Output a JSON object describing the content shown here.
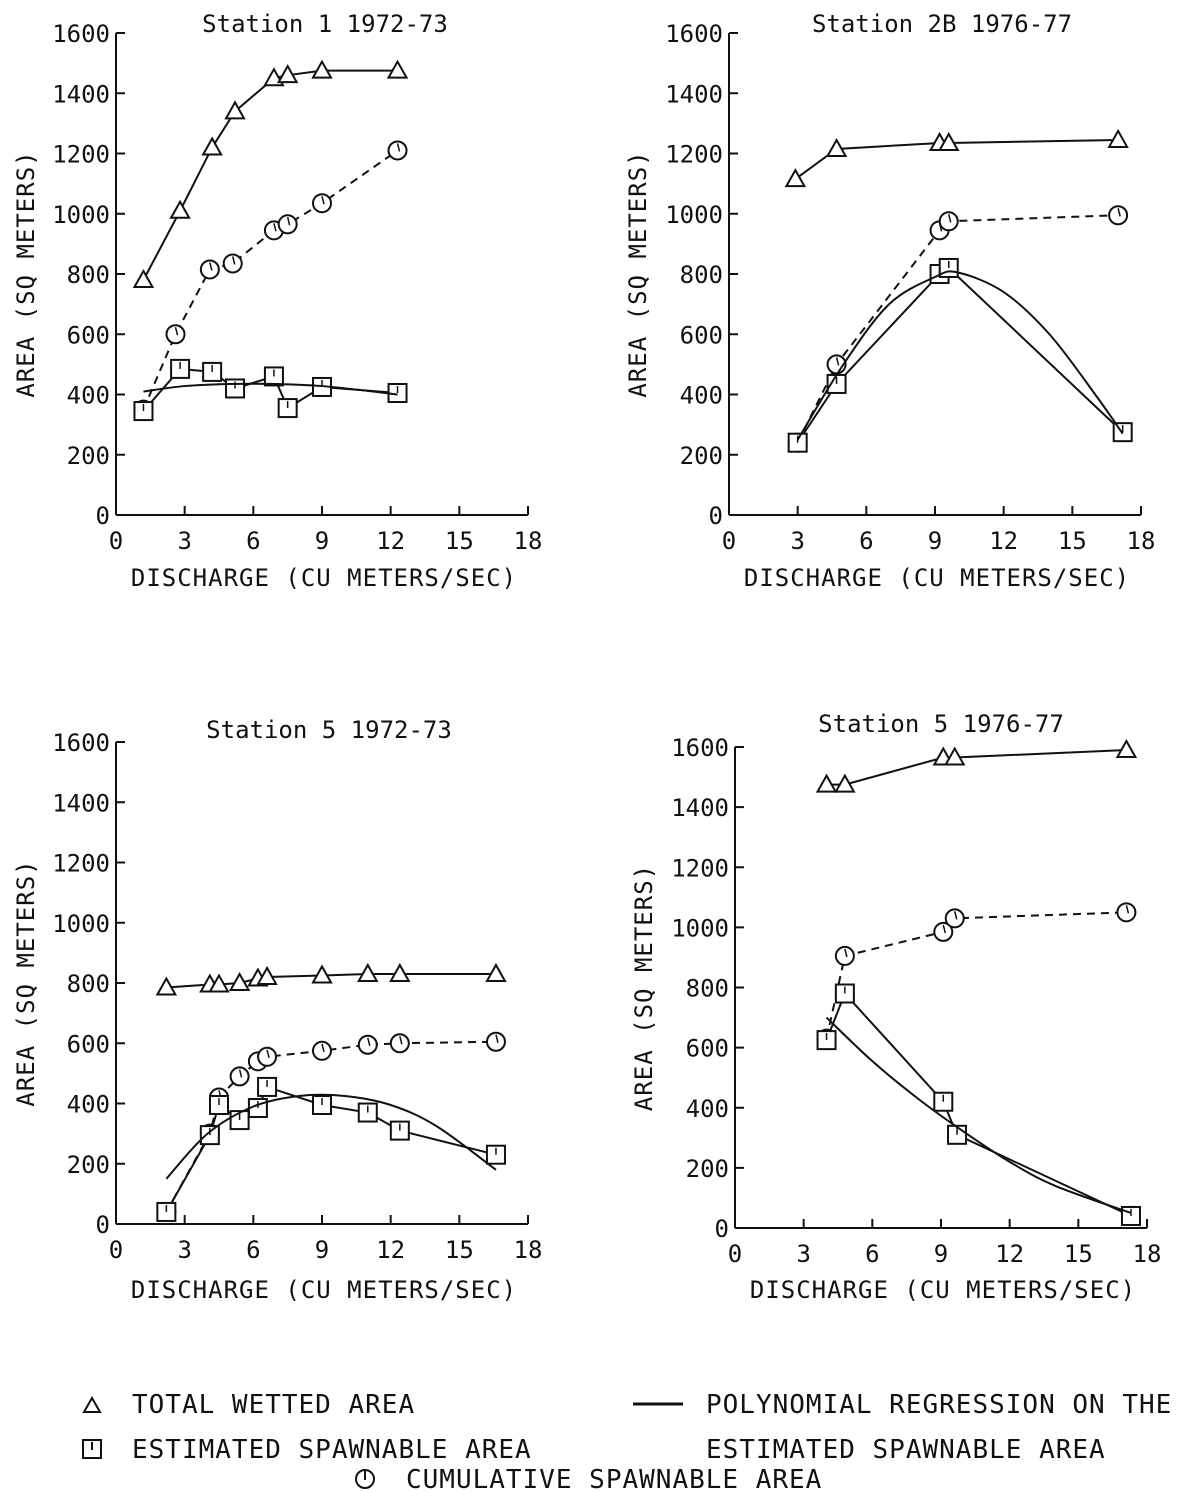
{
  "chart_data": [
    {
      "type": "line",
      "title": "Station 1  1972-73",
      "xlabel": "DISCHARGE (CU METERS/SEC)",
      "ylabel": "AREA (SQ METERS)",
      "xlim": [
        0,
        18
      ],
      "ylim": [
        0,
        1600
      ],
      "xticks": [
        "0",
        "3",
        "6",
        "9",
        "12",
        "15",
        "18"
      ],
      "yticks": [
        "0",
        "200",
        "400",
        "600",
        "800",
        "1000",
        "1200",
        "1400",
        "1600"
      ],
      "series": [
        {
          "key": "total",
          "x": [
            1.2,
            2.8,
            4.2,
            5.2,
            6.9,
            7.5,
            9.0,
            12.3
          ],
          "y": [
            780,
            1010,
            1220,
            1340,
            1450,
            1460,
            1475,
            1475
          ]
        },
        {
          "key": "cumulative",
          "x": [
            1.2,
            2.6,
            4.1,
            5.1,
            6.9,
            7.5,
            9.0,
            12.3
          ],
          "y": [
            350,
            600,
            815,
            835,
            945,
            965,
            1035,
            1210
          ]
        },
        {
          "key": "spawnable",
          "x": [
            1.2,
            2.8,
            4.2,
            5.2,
            6.9,
            7.5,
            9.0,
            12.3
          ],
          "y": [
            345,
            485,
            475,
            420,
            460,
            355,
            425,
            405
          ]
        },
        {
          "key": "regression",
          "x": [
            1.2,
            3,
            5,
            7,
            9,
            11,
            12.3
          ],
          "y": [
            410,
            428,
            435,
            435,
            428,
            412,
            400
          ]
        }
      ]
    },
    {
      "type": "line",
      "title": "Station 2B  1976-77",
      "xlabel": "DISCHARGE (CU METERS/SEC)",
      "ylabel": "AREA (SQ METERS)",
      "xlim": [
        0,
        18
      ],
      "ylim": [
        0,
        1600
      ],
      "xticks": [
        "0",
        "3",
        "6",
        "9",
        "12",
        "15",
        "18"
      ],
      "yticks": [
        "0",
        "200",
        "400",
        "600",
        "800",
        "1000",
        "1200",
        "1400",
        "1600"
      ],
      "series": [
        {
          "key": "total",
          "x": [
            2.9,
            4.7,
            9.2,
            9.6,
            17.0
          ],
          "y": [
            1115,
            1215,
            1235,
            1235,
            1245
          ]
        },
        {
          "key": "cumulative",
          "x": [
            3.0,
            4.7,
            9.2,
            9.6,
            17.0
          ],
          "y": [
            240,
            500,
            945,
            975,
            995
          ]
        },
        {
          "key": "spawnable",
          "x": [
            3.0,
            4.7,
            9.2,
            9.6,
            17.2
          ],
          "y": [
            240,
            435,
            800,
            820,
            275
          ]
        },
        {
          "key": "regression",
          "x": [
            3.0,
            5,
            7,
            9,
            10,
            12,
            14,
            16,
            17.2
          ],
          "y": [
            250,
            500,
            700,
            790,
            805,
            740,
            600,
            400,
            270
          ]
        }
      ]
    },
    {
      "type": "line",
      "title": "Station 5  1972-73",
      "xlabel": "DISCHARGE (CU METERS/SEC)",
      "ylabel": "AREA (SQ METERS)",
      "xlim": [
        0,
        18
      ],
      "ylim": [
        0,
        1600
      ],
      "xticks": [
        "0",
        "3",
        "6",
        "9",
        "12",
        "15",
        "18"
      ],
      "yticks": [
        "0",
        "200",
        "400",
        "600",
        "800",
        "1000",
        "1200",
        "1400",
        "1600"
      ],
      "series": [
        {
          "key": "total",
          "x": [
            2.2,
            4.1,
            4.5,
            5.4,
            6.2,
            6.6,
            9.0,
            11.0,
            12.4,
            16.6
          ],
          "y": [
            785,
            795,
            795,
            800,
            815,
            820,
            825,
            830,
            830,
            830
          ]
        },
        {
          "key": "cumulative",
          "x": [
            2.2,
            4.1,
            4.5,
            5.4,
            6.2,
            6.6,
            9.0,
            11.0,
            12.4,
            16.6
          ],
          "y": [
            40,
            300,
            420,
            490,
            540,
            555,
            575,
            595,
            600,
            605
          ]
        },
        {
          "key": "spawnable",
          "x": [
            2.2,
            4.1,
            4.5,
            5.4,
            6.2,
            6.6,
            9.0,
            11.0,
            12.4,
            16.6
          ],
          "y": [
            40,
            295,
            395,
            345,
            385,
            455,
            395,
            370,
            310,
            230
          ]
        },
        {
          "key": "regression",
          "x": [
            2.2,
            4,
            6,
            8,
            10,
            12,
            14,
            16.6
          ],
          "y": [
            150,
            300,
            390,
            425,
            425,
            395,
            325,
            180
          ]
        }
      ]
    },
    {
      "type": "line",
      "title": "Station 5  1976-77",
      "xlabel": "DISCHARGE (CU METERS/SEC)",
      "ylabel": "AREA (SQ METERS)",
      "xlim": [
        0,
        18
      ],
      "ylim": [
        0,
        1600
      ],
      "xticks": [
        "0",
        "3",
        "6",
        "9",
        "12",
        "15",
        "18"
      ],
      "yticks": [
        "0",
        "200",
        "400",
        "600",
        "800",
        "1000",
        "1200",
        "1400",
        "1600"
      ],
      "series": [
        {
          "key": "total",
          "x": [
            4.0,
            4.8,
            9.1,
            9.6,
            17.1
          ],
          "y": [
            1475,
            1475,
            1565,
            1565,
            1590
          ]
        },
        {
          "key": "cumulative",
          "x": [
            4.0,
            4.8,
            9.1,
            9.6,
            17.1
          ],
          "y": [
            630,
            905,
            985,
            1030,
            1050
          ]
        },
        {
          "key": "spawnable",
          "x": [
            4.0,
            4.8,
            9.1,
            9.7,
            17.3
          ],
          "y": [
            625,
            780,
            420,
            310,
            40
          ]
        },
        {
          "key": "regression",
          "x": [
            4.0,
            6,
            8,
            10,
            12,
            14,
            17.3
          ],
          "y": [
            700,
            555,
            430,
            320,
            220,
            140,
            50
          ]
        }
      ]
    }
  ],
  "legend": {
    "total": "TOTAL WETTED AREA",
    "spawnable": "ESTIMATED SPAWNABLE AREA",
    "cumulative": "CUMULATIVE SPAWNABLE AREA",
    "regression_line1": "POLYNOMIAL REGRESSION ON THE",
    "regression_line2": "ESTIMATED SPAWNABLE AREA"
  },
  "colors": {
    "ink": "#111111",
    "background": "#ffffff"
  }
}
